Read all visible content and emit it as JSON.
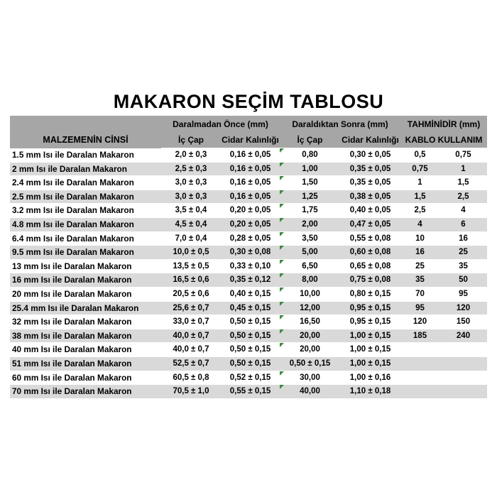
{
  "title": "MAKARON SEÇİM TABLOSU",
  "colors": {
    "header_bg": "#a6a6a6",
    "row_bg": "#ffffff",
    "row_alt_bg": "#d9d9d9",
    "text": "#000000",
    "error_indicator": "#3c8a3c"
  },
  "table": {
    "material_header": "MALZEMENİN CİNSİ",
    "groups": [
      {
        "label": "Daralmadan Önce (mm)",
        "sub": [
          "İç Çap",
          "Cidar Kalınlığı"
        ]
      },
      {
        "label": "Daraldıktan Sonra (mm)",
        "sub": [
          "İç Çap",
          "Cidar Kalınlığı"
        ]
      },
      {
        "label": "TAHMİNİDİR (mm)",
        "sub": [
          "KABLO KULLANIM"
        ]
      }
    ],
    "rows": [
      {
        "material": "1.5 mm Isı ile Daralan Makaron",
        "pre_ic_cap": "2,0 ± 0,3",
        "pre_cidar": "0,16 ± 0,05",
        "post_ic_cap": "0,80",
        "post_cidar": "0,30 ± 0,05",
        "kablo_min": "0,5",
        "kablo_max": "0,75",
        "indicator": true
      },
      {
        "material": "2 mm Isı ile Daralan Makaron",
        "pre_ic_cap": "2,5 ± 0,3",
        "pre_cidar": "0,16 ± 0,05",
        "post_ic_cap": "1,00",
        "post_cidar": "0,35 ± 0,05",
        "kablo_min": "0,75",
        "kablo_max": "1",
        "indicator": true
      },
      {
        "material": "2.4 mm Isı ile Daralan Makaron",
        "pre_ic_cap": "3,0 ± 0,3",
        "pre_cidar": "0,16 ± 0,05",
        "post_ic_cap": "1,50",
        "post_cidar": "0,35 ± 0,05",
        "kablo_min": "1",
        "kablo_max": "1,5",
        "indicator": true
      },
      {
        "material": "2.5 mm Isı ile Daralan Makaron",
        "pre_ic_cap": "3,0 ± 0,3",
        "pre_cidar": "0,16 ± 0,05",
        "post_ic_cap": "1,25",
        "post_cidar": "0,38 ± 0,05",
        "kablo_min": "1,5",
        "kablo_max": "2,5",
        "indicator": true
      },
      {
        "material": "3.2 mm Isı ile Daralan Makaron",
        "pre_ic_cap": "3,5 ± 0,4",
        "pre_cidar": "0,20 ± 0,05",
        "post_ic_cap": "1,75",
        "post_cidar": "0,40 ± 0,05",
        "kablo_min": "2,5",
        "kablo_max": "4",
        "indicator": true
      },
      {
        "material": "4.8 mm Isı ile Daralan Makaron",
        "pre_ic_cap": "4,5 ± 0,4",
        "pre_cidar": "0,20 ± 0,05",
        "post_ic_cap": "2,00",
        "post_cidar": "0,47 ± 0,05",
        "kablo_min": "4",
        "kablo_max": "6",
        "indicator": true
      },
      {
        "material": "6.4 mm Isı ile Daralan Makaron",
        "pre_ic_cap": "7,0 ± 0,4",
        "pre_cidar": "0,28 ± 0,05",
        "post_ic_cap": "3,50",
        "post_cidar": "0,55 ± 0,08",
        "kablo_min": "10",
        "kablo_max": "16",
        "indicator": true
      },
      {
        "material": "9.5 mm Isı ile Daralan Makaron",
        "pre_ic_cap": "10,0 ± 0,5",
        "pre_cidar": "0,30 ± 0,08",
        "post_ic_cap": "5,00",
        "post_cidar": "0,60 ± 0,08",
        "kablo_min": "16",
        "kablo_max": "25",
        "indicator": true
      },
      {
        "material": "13 mm Isı ile Daralan Makaron",
        "pre_ic_cap": "13,5 ± 0,5",
        "pre_cidar": "0,33 ± 0,10",
        "post_ic_cap": "6,50",
        "post_cidar": "0,65 ± 0,08",
        "kablo_min": "25",
        "kablo_max": "35",
        "indicator": true
      },
      {
        "material": "16 mm Isı ile Daralan Makaron",
        "pre_ic_cap": "16,5 ± 0,6",
        "pre_cidar": "0,35 ± 0,12",
        "post_ic_cap": "8,00",
        "post_cidar": "0,75 ± 0,08",
        "kablo_min": "35",
        "kablo_max": "50",
        "indicator": true
      },
      {
        "material": "20 mm Isı ile Daralan Makaron",
        "pre_ic_cap": "20,5 ± 0,6",
        "pre_cidar": "0,40 ± 0,15",
        "post_ic_cap": "10,00",
        "post_cidar": "0,80 ± 0,15",
        "kablo_min": "70",
        "kablo_max": "95",
        "indicator": true
      },
      {
        "material": "25.4 mm Isı ile Daralan Makaron",
        "pre_ic_cap": "25,6 ± 0,7",
        "pre_cidar": "0,45 ± 0,15",
        "post_ic_cap": "12,00",
        "post_cidar": "0,95 ± 0,15",
        "kablo_min": "95",
        "kablo_max": "120",
        "indicator": true
      },
      {
        "material": "32 mm Isı ile Daralan Makaron",
        "pre_ic_cap": "33,0 ± 0,7",
        "pre_cidar": "0,50 ± 0,15",
        "post_ic_cap": "16,50",
        "post_cidar": "0,95 ± 0,15",
        "kablo_min": "120",
        "kablo_max": "150",
        "indicator": true
      },
      {
        "material": "38 mm Isı ile Daralan Makaron",
        "pre_ic_cap": "40,0 ± 0,7",
        "pre_cidar": "0,50 ± 0,15",
        "post_ic_cap": "20,00",
        "post_cidar": "1,00 ± 0,15",
        "kablo_min": "185",
        "kablo_max": "240",
        "indicator": true
      },
      {
        "material": "40 mm Isı ile Daralan Makaron",
        "pre_ic_cap": "40,0 ± 0,7",
        "pre_cidar": "0,50 ± 0,15",
        "post_ic_cap": "20,00",
        "post_cidar": "1,00 ± 0,15",
        "kablo_min": "",
        "kablo_max": "",
        "indicator": true
      },
      {
        "material": "51 mm Isı ile Daralan Makaron",
        "pre_ic_cap": "52,5 ± 0,7",
        "pre_cidar": "0,50 ± 0,15",
        "post_ic_cap": "0,50 ± 0,15",
        "post_cidar": "1,00 ± 0,15",
        "kablo_min": "",
        "kablo_max": "",
        "indicator": false
      },
      {
        "material": "60 mm Isı ile Daralan Makaron",
        "pre_ic_cap": "60,5 ± 0,8",
        "pre_cidar": "0,52 ± 0,15",
        "post_ic_cap": "30,00",
        "post_cidar": "1,00 ± 0,16",
        "kablo_min": "",
        "kablo_max": "",
        "indicator": true
      },
      {
        "material": "70 mm Isı ile Daralan Makaron",
        "pre_ic_cap": "70,5 ± 1,0",
        "pre_cidar": "0,55 ± 0,15",
        "post_ic_cap": "40,00",
        "post_cidar": "1,10 ± 0,18",
        "kablo_min": "",
        "kablo_max": "",
        "indicator": true
      }
    ]
  }
}
